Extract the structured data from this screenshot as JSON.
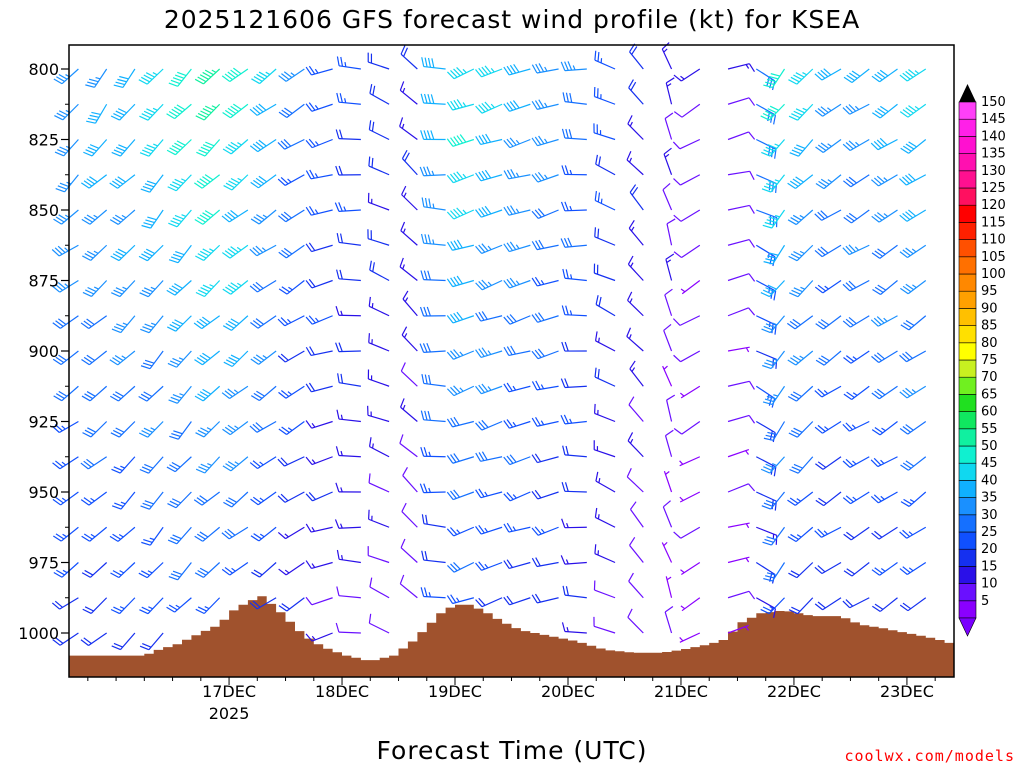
{
  "chart_data": {
    "type": "wind-barb-profile",
    "title": "2025121606 GFS forecast wind profile (kt) for KSEA",
    "xlabel": "Forecast Time (UTC)",
    "credit": "coolwx.com/models",
    "x_range_hours": [
      -16,
      172
    ],
    "x_ticks": [
      {
        "label": "17DEC",
        "sublabel": "2025",
        "hour": 18
      },
      {
        "label": "18DEC",
        "hour": 42
      },
      {
        "label": "19DEC",
        "hour": 66
      },
      {
        "label": "20DEC",
        "hour": 90
      },
      {
        "label": "21DEC",
        "hour": 114
      },
      {
        "label": "22DEC",
        "hour": 138
      },
      {
        "label": "23DEC",
        "hour": 162
      }
    ],
    "y_range_hpa": [
      1016,
      790
    ],
    "y_ticks": [
      "800",
      "825",
      "850",
      "875",
      "900",
      "925",
      "950",
      "975",
      "1000"
    ],
    "y_tick_values": [
      800,
      825,
      850,
      875,
      900,
      925,
      950,
      975,
      1000
    ],
    "levels_hpa": [
      800,
      812.5,
      825,
      837.5,
      850,
      862.5,
      875,
      887.5,
      900,
      912.5,
      925,
      937.5,
      950,
      962.5,
      975,
      987.5,
      1000
    ],
    "colorbar": {
      "units": "kt",
      "ticks": [
        "5",
        "10",
        "15",
        "20",
        "25",
        "30",
        "35",
        "40",
        "45",
        "50",
        "55",
        "60",
        "65",
        "70",
        "75",
        "80",
        "85",
        "90",
        "95",
        "100",
        "105",
        "110",
        "115",
        "120",
        "125",
        "130",
        "135",
        "140",
        "145",
        "150"
      ],
      "colors": [
        "#8a00ff",
        "#6a10ff",
        "#2a10e8",
        "#1530f0",
        "#1050ff",
        "#1570ff",
        "#1a90ff",
        "#10b0ff",
        "#10d8f0",
        "#10f0d0",
        "#10f0a0",
        "#10e860",
        "#20e020",
        "#70f020",
        "#c8f020",
        "#ffff00",
        "#ffe000",
        "#ffc000",
        "#ffa000",
        "#ff8800",
        "#ff7000",
        "#ff5000",
        "#ff2000",
        "#ff0000",
        "#ff1060",
        "#ff1090",
        "#ff10b0",
        "#ff10d0",
        "#ff20e8",
        "#ff40f8"
      ]
    },
    "surface_pressure_hpa": [
      {
        "hour": -16,
        "p": 1008
      },
      {
        "hour": 0,
        "p": 1008
      },
      {
        "hour": 3,
        "p": 1006
      },
      {
        "hour": 7,
        "p": 1004
      },
      {
        "hour": 12,
        "p": 1000
      },
      {
        "hour": 16,
        "p": 997
      },
      {
        "hour": 19,
        "p": 992
      },
      {
        "hour": 22,
        "p": 989
      },
      {
        "hour": 25,
        "p": 987
      },
      {
        "hour": 28,
        "p": 991
      },
      {
        "hour": 31,
        "p": 996
      },
      {
        "hour": 34,
        "p": 1001
      },
      {
        "hour": 38,
        "p": 1005
      },
      {
        "hour": 43,
        "p": 1008
      },
      {
        "hour": 48,
        "p": 1010
      },
      {
        "hour": 53,
        "p": 1008
      },
      {
        "hour": 57,
        "p": 1003
      },
      {
        "hour": 60,
        "p": 998
      },
      {
        "hour": 63,
        "p": 993
      },
      {
        "hour": 66,
        "p": 990
      },
      {
        "hour": 69,
        "p": 990
      },
      {
        "hour": 72,
        "p": 992
      },
      {
        "hour": 76,
        "p": 996
      },
      {
        "hour": 80,
        "p": 999
      },
      {
        "hour": 86,
        "p": 1001
      },
      {
        "hour": 92,
        "p": 1003
      },
      {
        "hour": 98,
        "p": 1006
      },
      {
        "hour": 104,
        "p": 1007
      },
      {
        "hour": 110,
        "p": 1007
      },
      {
        "hour": 114,
        "p": 1006
      },
      {
        "hour": 120,
        "p": 1004
      },
      {
        "hour": 124,
        "p": 1002
      },
      {
        "hour": 126,
        "p": 997
      },
      {
        "hour": 131,
        "p": 993
      },
      {
        "hour": 136,
        "p": 992
      },
      {
        "hour": 142,
        "p": 994
      },
      {
        "hour": 148,
        "p": 994
      },
      {
        "hour": 152,
        "p": 997
      },
      {
        "hour": 156,
        "p": 998
      },
      {
        "hour": 168,
        "p": 1002
      },
      {
        "hour": 172,
        "p": 1004
      }
    ],
    "wind_profile_samples": [
      {
        "hour": -14,
        "speed_kt": 35,
        "dir_deg": 235
      },
      {
        "hour": 6,
        "speed_kt": 40,
        "dir_deg": 220
      },
      {
        "hour": 18,
        "speed_kt": 50,
        "dir_deg": 230
      },
      {
        "hour": 36,
        "speed_kt": 25,
        "dir_deg": 240
      },
      {
        "hour": 60,
        "speed_kt": 15,
        "dir_deg": 320
      },
      {
        "hour": 66,
        "speed_kt": 45,
        "dir_deg": 250
      },
      {
        "hour": 90,
        "speed_kt": 30,
        "dir_deg": 255
      },
      {
        "hour": 114,
        "speed_kt": 10,
        "dir_deg": 350
      },
      {
        "hour": 126,
        "speed_kt": 10,
        "dir_deg": 20
      },
      {
        "hour": 134,
        "speed_kt": 45,
        "dir_deg": 215
      },
      {
        "hour": 150,
        "speed_kt": 30,
        "dir_deg": 240
      },
      {
        "hour": 170,
        "speed_kt": 40,
        "dir_deg": 235
      }
    ]
  }
}
